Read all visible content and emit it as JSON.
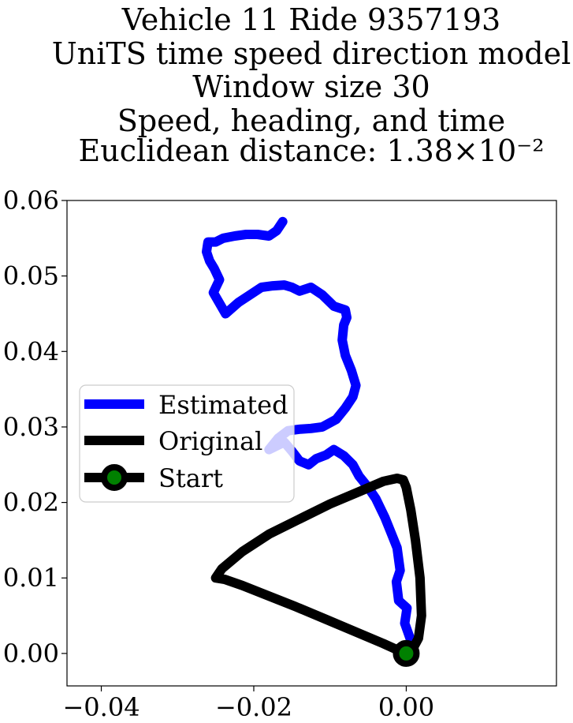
{
  "chart_data": {
    "type": "line",
    "title_lines": [
      "Vehicle 11 Ride 9357193",
      "UniTS time speed direction model",
      "Window size 30",
      "Speed, heading, and time",
      "Euclidean distance: 1.38×10⁻²"
    ],
    "xlabel": "",
    "ylabel": "",
    "xlim": [
      -0.0445,
      0.0197
    ],
    "ylim": [
      -0.0043,
      0.06
    ],
    "xticks": [
      -0.04,
      -0.02,
      0.0
    ],
    "xtick_labels": [
      "−0.04",
      "−0.02",
      "0.00"
    ],
    "yticks": [
      0.0,
      0.01,
      0.02,
      0.03,
      0.04,
      0.05,
      0.06
    ],
    "ytick_labels": [
      "0.00",
      "0.01",
      "0.02",
      "0.03",
      "0.04",
      "0.05",
      "0.06"
    ],
    "grid": false,
    "legend_position": "center-left",
    "series": [
      {
        "name": "Estimated",
        "color": "#0000ff",
        "x": [
          0.0005,
          -0.0002,
          0.0001,
          -0.001,
          -0.0013,
          -0.0008,
          -0.0012,
          -0.002,
          -0.0028,
          -0.004,
          -0.005,
          -0.0062,
          -0.007,
          -0.0082,
          -0.0095,
          -0.0105,
          -0.0118,
          -0.0128,
          -0.014,
          -0.015,
          -0.016,
          -0.017,
          -0.018,
          -0.0168,
          -0.0155,
          -0.014,
          -0.0125,
          -0.011,
          -0.0092,
          -0.008,
          -0.007,
          -0.0066,
          -0.0072,
          -0.008,
          -0.0084,
          -0.0082,
          -0.0078,
          -0.008,
          -0.0095,
          -0.011,
          -0.0125,
          -0.014,
          -0.015,
          -0.016,
          -0.0175,
          -0.019,
          -0.0205,
          -0.022,
          -0.0237,
          -0.0253,
          -0.0245,
          -0.0252,
          -0.0258,
          -0.0262,
          -0.026,
          -0.025,
          -0.024,
          -0.0225,
          -0.021,
          -0.0195,
          -0.018,
          -0.017,
          -0.0162
        ],
        "y": [
          0.002,
          0.004,
          0.006,
          0.007,
          0.0095,
          0.011,
          0.014,
          0.016,
          0.018,
          0.0205,
          0.022,
          0.0235,
          0.025,
          0.0262,
          0.027,
          0.0263,
          0.0258,
          0.025,
          0.0255,
          0.0268,
          0.028,
          0.0275,
          0.027,
          0.0285,
          0.0295,
          0.0297,
          0.0298,
          0.03,
          0.031,
          0.0325,
          0.034,
          0.0355,
          0.0375,
          0.0395,
          0.0415,
          0.0435,
          0.0445,
          0.0455,
          0.046,
          0.0475,
          0.0485,
          0.048,
          0.0485,
          0.0488,
          0.0487,
          0.0485,
          0.0475,
          0.0465,
          0.045,
          0.0478,
          0.0495,
          0.051,
          0.052,
          0.0532,
          0.0545,
          0.0545,
          0.055,
          0.0553,
          0.0555,
          0.0555,
          0.0553,
          0.056,
          0.0572
        ]
      },
      {
        "name": "Original",
        "color": "#000000",
        "x": [
          0.0,
          -0.0008,
          -0.003,
          -0.0065,
          -0.0105,
          -0.0145,
          -0.0185,
          -0.0215,
          -0.0238,
          -0.025,
          -0.0242,
          -0.0215,
          -0.018,
          -0.014,
          -0.01,
          -0.006,
          -0.003,
          -0.0012,
          -0.0004,
          0.0,
          0.0006,
          0.0012,
          0.0018,
          0.002,
          0.0016,
          0.0008,
          0.0
        ],
        "y": [
          0.0,
          0.0003,
          0.0013,
          0.0028,
          0.0045,
          0.0062,
          0.0078,
          0.009,
          0.0098,
          0.01,
          0.0112,
          0.0135,
          0.0158,
          0.0178,
          0.0198,
          0.0215,
          0.0228,
          0.0232,
          0.023,
          0.022,
          0.019,
          0.015,
          0.01,
          0.005,
          0.002,
          0.0005,
          0.0
        ]
      }
    ],
    "start_marker": {
      "name": "Start",
      "x": 0.0,
      "y": 0.0,
      "color": "#008000",
      "edge_color": "#000000"
    },
    "legend": [
      {
        "label": "Estimated",
        "style": "line",
        "color": "#0000ff"
      },
      {
        "label": "Original",
        "style": "line",
        "color": "#000000"
      },
      {
        "label": "Start",
        "style": "marker-line",
        "color": "#000000",
        "marker_color": "#008000"
      }
    ]
  }
}
